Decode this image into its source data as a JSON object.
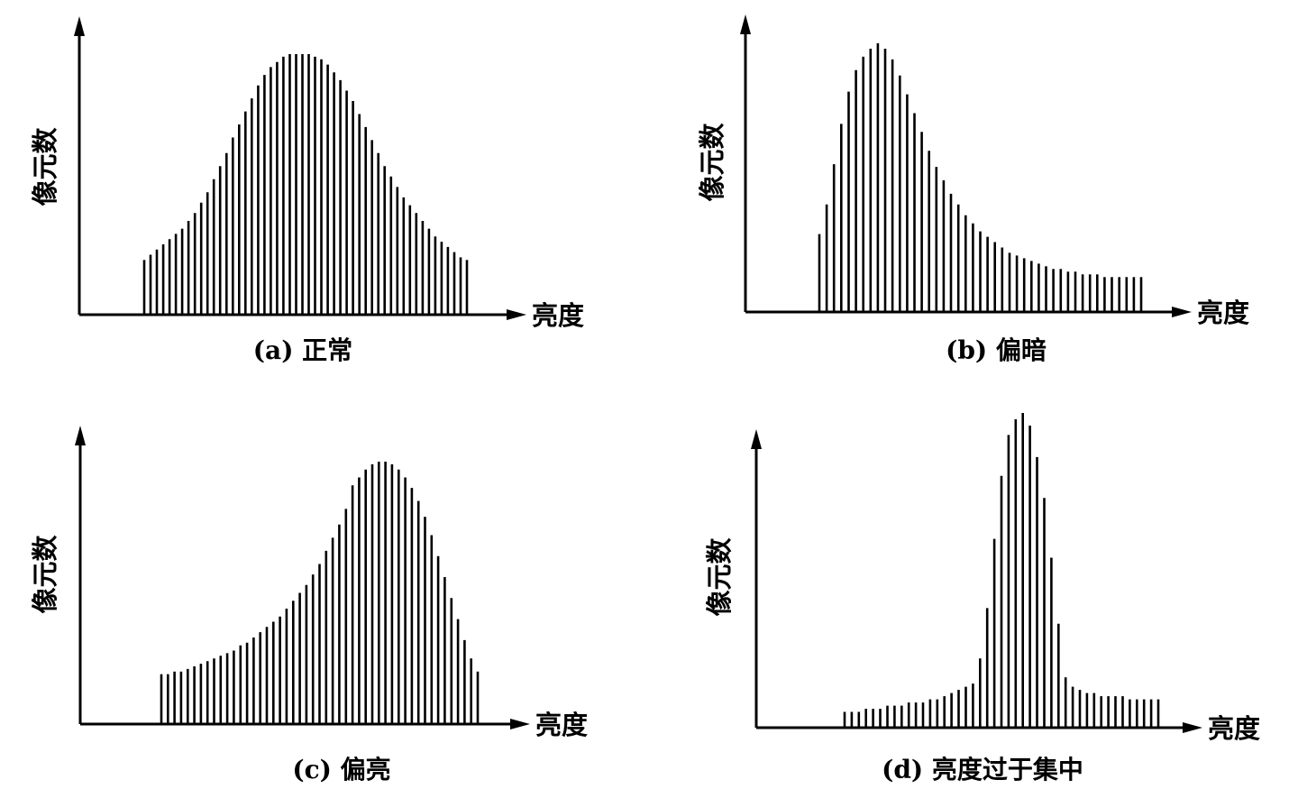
{
  "chart_data": [
    {
      "type": "bar",
      "caption": "(a) 正常",
      "xlabel": "亮度",
      "ylabel": "像元数",
      "ylim": [
        0,
        100
      ],
      "grid": false,
      "values": [
        21,
        23,
        25,
        27,
        29,
        31,
        33,
        36,
        39,
        43,
        47,
        52,
        57,
        62,
        68,
        73,
        78,
        83,
        88,
        92,
        95,
        97,
        99,
        100,
        100,
        100,
        100,
        99,
        98,
        96,
        93,
        90,
        86,
        82,
        77,
        72,
        67,
        62,
        57,
        53,
        49,
        45,
        42,
        39,
        36,
        33,
        30,
        28,
        26,
        24,
        22,
        21
      ]
    },
    {
      "type": "bar",
      "caption": "(b) 偏暗",
      "xlabel": "亮度",
      "ylabel": "像元数",
      "ylim": [
        0,
        100
      ],
      "grid": false,
      "values": [
        29,
        40,
        55,
        70,
        82,
        90,
        95,
        98,
        100,
        98,
        94,
        88,
        81,
        74,
        67,
        60,
        54,
        49,
        44,
        40,
        36,
        33,
        30,
        28,
        26,
        24,
        22,
        21,
        20,
        19,
        18,
        17,
        16,
        16,
        15,
        15,
        14,
        14,
        14,
        13,
        13,
        13,
        13,
        13,
        13
      ]
    },
    {
      "type": "bar",
      "caption": "(c) 偏亮",
      "xlabel": "亮度",
      "ylabel": "像元数",
      "ylim": [
        0,
        100
      ],
      "grid": false,
      "values": [
        19,
        19,
        20,
        20,
        21,
        22,
        23,
        24,
        25,
        26,
        27,
        28,
        30,
        31,
        33,
        35,
        37,
        39,
        41,
        44,
        47,
        50,
        53,
        57,
        61,
        66,
        71,
        76,
        82,
        91,
        94,
        97,
        99,
        100,
        100,
        99,
        97,
        94,
        90,
        85,
        79,
        72,
        64,
        56,
        48,
        40,
        32,
        25,
        20
      ]
    },
    {
      "type": "bar",
      "caption": "(d) 亮度过于集中",
      "xlabel": "亮度",
      "ylabel": "像元数",
      "ylim": [
        0,
        100
      ],
      "grid": false,
      "values": [
        5,
        5,
        5,
        6,
        6,
        6,
        7,
        7,
        7,
        8,
        8,
        8,
        9,
        9,
        10,
        11,
        12,
        13,
        14,
        22,
        38,
        60,
        80,
        93,
        98,
        100,
        96,
        86,
        73,
        54,
        33,
        16,
        13,
        12,
        11,
        11,
        10,
        10,
        10,
        10,
        9,
        9,
        9,
        9,
        9
      ]
    }
  ]
}
